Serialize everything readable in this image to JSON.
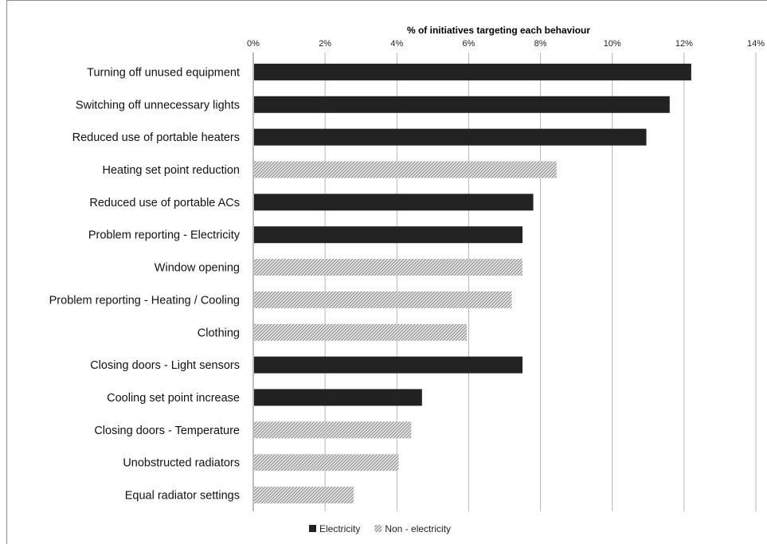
{
  "chart_data": {
    "type": "bar",
    "orientation": "horizontal",
    "title": "% of initiatives targeting each behaviour",
    "title_position": "top",
    "xlabel": "",
    "ylabel": "",
    "xlim": [
      0,
      14
    ],
    "x_ticks": [
      "0%",
      "2%",
      "4%",
      "6%",
      "8%",
      "10%",
      "12%",
      "14%"
    ],
    "grid": "vertical",
    "legend_position": "bottom",
    "categories": [
      "Turning off unused equipment",
      "Switching off unnecessary lights",
      "Reduced use of portable heaters",
      "Heating set point reduction",
      "Reduced use of portable ACs",
      "Problem reporting - Electricity",
      "Window opening",
      "Problem reporting - Heating / Cooling",
      "Clothing",
      "Closing doors - Light sensors",
      "Cooling set point increase",
      "Closing doors - Temperature",
      "Unobstructed radiators",
      "Equal radiator settings"
    ],
    "values": [
      12.2,
      11.6,
      10.95,
      8.45,
      7.8,
      7.5,
      7.5,
      7.2,
      5.95,
      7.5,
      4.7,
      4.4,
      4.05,
      2.8
    ],
    "bar_type": [
      "Electricity",
      "Electricity",
      "Electricity",
      "Non - electricity",
      "Electricity",
      "Electricity",
      "Non - electricity",
      "Non - electricity",
      "Non - electricity",
      "Electricity",
      "Electricity",
      "Non - electricity",
      "Non - electricity",
      "Non - electricity"
    ],
    "series": [
      {
        "name": "Electricity",
        "color": "#222222"
      },
      {
        "name": "Non - electricity",
        "color": "#c8c8c8",
        "pattern": "hatched"
      }
    ]
  }
}
